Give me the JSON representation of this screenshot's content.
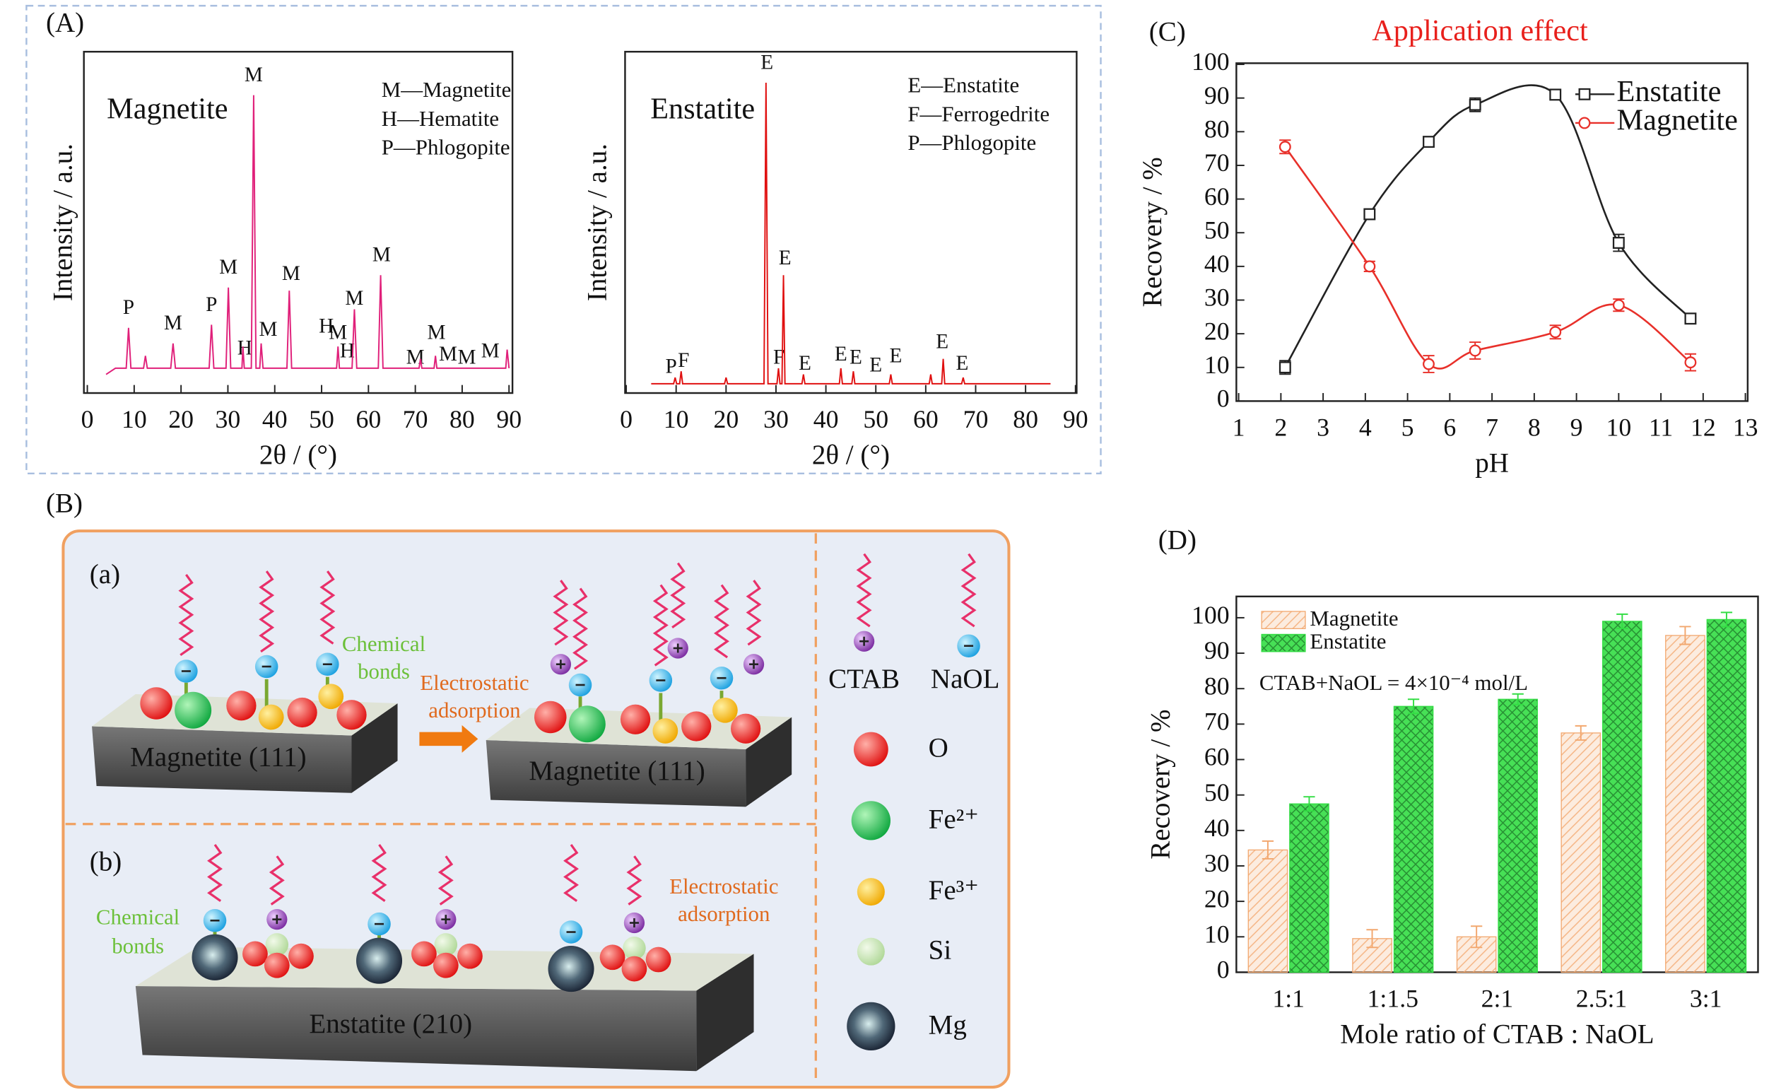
{
  "chart_data": [
    {
      "type": "line",
      "panel_label": "(A)",
      "title": "Magnetite",
      "x_label": "2θ / (°)",
      "y_label": "Intensity / a.u.",
      "legend_text": [
        "M—Magnetite",
        "H—Hematite",
        "P—Phlogopite"
      ],
      "xlim": [
        0,
        90
      ],
      "xticks": [
        0,
        10,
        20,
        30,
        40,
        50,
        60,
        70,
        80,
        90
      ],
      "ylim": [
        0,
        110
      ],
      "x": [
        4,
        6,
        8.3,
        8.8,
        9.3,
        12,
        12.4,
        12.8,
        17.8,
        18.3,
        18.8,
        24,
        26,
        26.5,
        27,
        29.6,
        30.1,
        30.6,
        33,
        33.2,
        33.5,
        35,
        35.5,
        36,
        36.8,
        37.1,
        37.5,
        42.6,
        43.1,
        43.6,
        47,
        53.2,
        53.5,
        53.8,
        56.5,
        57,
        57.5,
        62.1,
        62.6,
        63.1,
        70.8,
        71.1,
        71.4,
        74,
        74.3,
        74.6,
        87,
        89.3,
        89.6,
        90
      ],
      "series": [
        {
          "color": "#e0207a",
          "values": [
            6,
            8,
            8,
            21,
            8,
            8,
            12,
            8,
            8,
            16,
            8,
            8,
            8,
            22,
            8,
            8,
            34,
            8,
            8,
            15,
            8,
            8,
            96,
            8,
            8,
            16,
            8,
            8,
            33,
            8,
            8,
            8,
            15,
            8,
            8,
            27,
            8,
            8,
            38,
            8,
            8,
            11,
            8,
            8,
            12,
            8,
            8,
            8,
            14,
            8
          ]
        }
      ],
      "annotations": [
        {
          "text": "P",
          "x": 8.8,
          "y": 27
        },
        {
          "text": "M",
          "x": 18.3,
          "y": 22
        },
        {
          "text": "P",
          "x": 26.5,
          "y": 28
        },
        {
          "text": "M",
          "x": 30.1,
          "y": 40
        },
        {
          "text": "H",
          "x": 33.6,
          "y": 14
        },
        {
          "text": "M",
          "x": 35.5,
          "y": 102
        },
        {
          "text": "M",
          "x": 38.6,
          "y": 20
        },
        {
          "text": "M",
          "x": 43.5,
          "y": 38
        },
        {
          "text": "H",
          "x": 51,
          "y": 21
        },
        {
          "text": "M",
          "x": 53.5,
          "y": 19
        },
        {
          "text": "H",
          "x": 55.5,
          "y": 13
        },
        {
          "text": "M",
          "x": 57,
          "y": 30
        },
        {
          "text": "M",
          "x": 62.8,
          "y": 44
        },
        {
          "text": "M",
          "x": 70,
          "y": 11
        },
        {
          "text": "M",
          "x": 74.5,
          "y": 19
        },
        {
          "text": "M",
          "x": 77,
          "y": 12
        },
        {
          "text": "M",
          "x": 81,
          "y": 11
        },
        {
          "text": "M",
          "x": 86,
          "y": 13
        }
      ]
    },
    {
      "type": "line",
      "title": "Enstatite",
      "x_label": "2θ / (°)",
      "y_label": "Intensity / a.u.",
      "legend_text": [
        "E—Enstatite",
        "F—Ferrogedrite",
        "P—Phlogopite"
      ],
      "xlim": [
        0,
        90
      ],
      "xticks": [
        0,
        10,
        20,
        30,
        40,
        50,
        60,
        70,
        80,
        90
      ],
      "ylim": [
        0,
        110
      ],
      "x": [
        5,
        9.5,
        9.8,
        10.1,
        10.7,
        11,
        11.3,
        19.7,
        20,
        20.3,
        27.6,
        28,
        28.4,
        30.2,
        30.5,
        30.8,
        31.2,
        31.5,
        31.8,
        35.2,
        35.5,
        35.8,
        42.7,
        43,
        43.3,
        45.2,
        45.5,
        45.8,
        52.7,
        53,
        53.3,
        60.7,
        61,
        61.3,
        63.2,
        63.5,
        63.8,
        67.2,
        67.5,
        67.8,
        85
      ],
      "series": [
        {
          "color": "#e01010",
          "values": [
            3,
            3,
            5,
            3,
            3,
            7,
            3,
            3,
            5,
            3,
            3,
            100,
            3,
            3,
            8,
            3,
            3,
            38,
            3,
            3,
            6,
            3,
            3,
            8,
            3,
            3,
            7,
            3,
            3,
            6,
            3,
            3,
            6,
            3,
            3,
            11,
            3,
            3,
            5,
            3,
            3
          ]
        }
      ],
      "annotations": [
        {
          "text": "P",
          "x": 9,
          "y": 8
        },
        {
          "text": "F",
          "x": 11.5,
          "y": 10
        },
        {
          "text": "E",
          "x": 28.2,
          "y": 106
        },
        {
          "text": "E",
          "x": 31.8,
          "y": 43
        },
        {
          "text": "F",
          "x": 30.6,
          "y": 11
        },
        {
          "text": "E",
          "x": 35.8,
          "y": 9
        },
        {
          "text": "E",
          "x": 43,
          "y": 12
        },
        {
          "text": "E",
          "x": 46,
          "y": 11
        },
        {
          "text": "E",
          "x": 50,
          "y": 8.5
        },
        {
          "text": "E",
          "x": 54,
          "y": 11.5
        },
        {
          "text": "E",
          "x": 63.3,
          "y": 16
        },
        {
          "text": "E",
          "x": 67.3,
          "y": 9
        }
      ]
    },
    {
      "type": "line",
      "panel_label": "(C)",
      "title": "Application effect",
      "title_color": "#e8201c",
      "x_label": "pH",
      "y_label": "Recovery / %",
      "xlim": [
        1,
        13
      ],
      "xticks": [
        1,
        2,
        3,
        4,
        5,
        6,
        7,
        8,
        9,
        10,
        11,
        12,
        13
      ],
      "ylim": [
        0,
        100
      ],
      "yticks": [
        0,
        10,
        20,
        30,
        40,
        50,
        60,
        70,
        80,
        90,
        100
      ],
      "smooth": true,
      "legend": "upper right",
      "x": [
        2.1,
        4.1,
        5.5,
        6.6,
        8.5,
        10,
        11.7
      ],
      "series": [
        {
          "name": "Enstatite",
          "color": "#222222",
          "marker": "square",
          "values": [
            10,
            55.5,
            77,
            88,
            91,
            47,
            24.5
          ],
          "errors": [
            2,
            1.5,
            1.5,
            2,
            1.5,
            2.5,
            1.5
          ]
        },
        {
          "name": "Magnetite",
          "color": "#e8302a",
          "marker": "circle",
          "values": [
            75.5,
            40,
            11,
            15,
            20.5,
            28.5,
            11.5
          ],
          "errors": [
            2,
            1.5,
            2.5,
            2.5,
            2,
            1.8,
            2.5
          ]
        }
      ]
    },
    {
      "type": "bar",
      "panel_label": "(D)",
      "x_label": "Mole ratio of CTAB : NaOL",
      "y_label": "Recovery / %",
      "annotation": "CTAB+NaOL = 4×10⁻⁴ mol/L",
      "categories": [
        "1:1",
        "1:1.5",
        "2:1",
        "2.5:1",
        "3:1"
      ],
      "ylim": [
        0,
        106
      ],
      "yticks": [
        0,
        10,
        20,
        30,
        40,
        50,
        60,
        70,
        80,
        90,
        100
      ],
      "legend": "upper left",
      "series": [
        {
          "name": "Magnetite",
          "color": "#f2a76e",
          "hatch": "diagonal",
          "values": [
            34.5,
            9.5,
            10,
            67.5,
            95
          ],
          "errors": [
            2.5,
            2.5,
            3,
            2,
            2.5
          ]
        },
        {
          "name": "Enstatite",
          "color": "#33dd44",
          "hatch": "cross",
          "values": [
            47.5,
            75,
            77,
            99,
            99.5
          ],
          "errors": [
            2,
            2,
            1.5,
            2,
            2
          ]
        }
      ]
    }
  ],
  "diagram": {
    "label": "(B)",
    "panel_a": "(a)",
    "panel_b": "(b)",
    "surface_a1": "Magnetite (111)",
    "surface_a2": "Magnetite (111)",
    "surface_b": "Enstatite (210)",
    "chemical_bonds_a": [
      "Chemical",
      "bonds"
    ],
    "electrostatic_a": [
      "Electrostatic",
      "adsorption"
    ],
    "chemical_bonds_b": [
      "Chemical",
      "bonds"
    ],
    "electrostatic_b": [
      "Electrostatic",
      "adsorption"
    ],
    "legend": {
      "ctab": "CTAB",
      "naol": "NaOL",
      "o": "O",
      "fe2": "Fe²⁺",
      "fe3": "Fe³⁺",
      "si": "Si",
      "mg": "Mg"
    }
  }
}
